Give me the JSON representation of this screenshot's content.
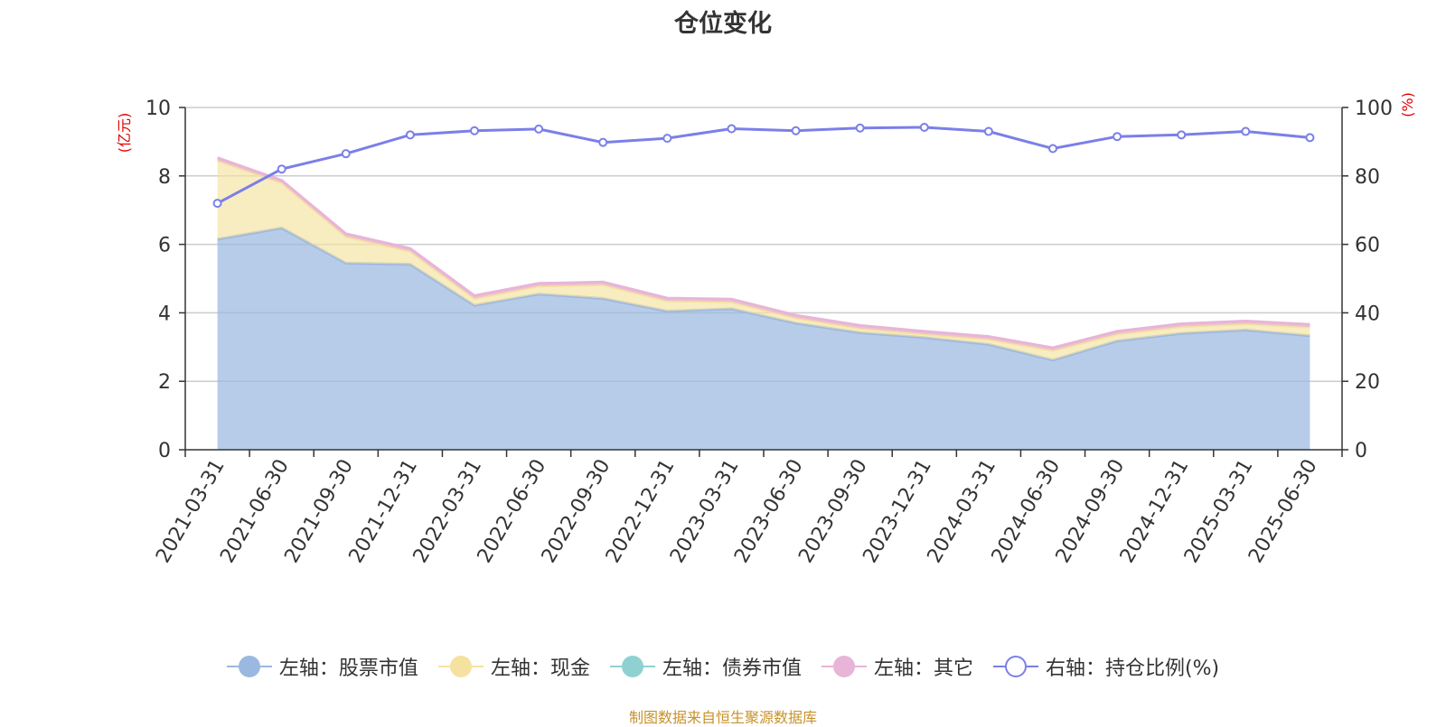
{
  "title": "仓位变化",
  "source": "制图数据来自恒生聚源数据库",
  "chart_data": {
    "type": "area",
    "title": "仓位变化",
    "ylabel_left": "(亿元)",
    "ylabel_right": "(%)",
    "ylim_left": [
      0,
      10
    ],
    "ylim_right": [
      0,
      100
    ],
    "yticks_left": [
      0,
      2,
      4,
      6,
      8,
      10
    ],
    "yticks_right": [
      0,
      20,
      40,
      60,
      80,
      100
    ],
    "grid": true,
    "legend_position": "bottom",
    "categories": [
      "2021-03-31",
      "2021-06-30",
      "2021-09-30",
      "2021-12-31",
      "2022-03-31",
      "2022-06-30",
      "2022-09-30",
      "2022-12-31",
      "2023-03-31",
      "2023-06-30",
      "2023-09-30",
      "2023-12-31",
      "2024-03-31",
      "2024-06-30",
      "2024-09-30",
      "2024-12-31",
      "2025-03-31",
      "2025-06-30"
    ],
    "series": [
      {
        "name": "左轴：股票市值",
        "axis": "left",
        "stack": true,
        "color": "#9bb8e0",
        "values": [
          6.15,
          6.48,
          5.45,
          5.42,
          4.22,
          4.55,
          4.42,
          4.05,
          4.12,
          3.7,
          3.42,
          3.28,
          3.08,
          2.62,
          3.18,
          3.4,
          3.5,
          3.33
        ]
      },
      {
        "name": "左轴：现金",
        "axis": "left",
        "stack": true,
        "color": "#f5e2a0",
        "values": [
          2.3,
          1.32,
          0.78,
          0.38,
          0.2,
          0.23,
          0.4,
          0.3,
          0.2,
          0.15,
          0.13,
          0.1,
          0.15,
          0.28,
          0.2,
          0.2,
          0.18,
          0.25
        ]
      },
      {
        "name": "左轴：债券市值",
        "axis": "left",
        "stack": true,
        "color": "#8fd1d1",
        "values": [
          0,
          0,
          0,
          0,
          0,
          0,
          0,
          0,
          0,
          0,
          0,
          0,
          0,
          0,
          0,
          0,
          0,
          0
        ]
      },
      {
        "name": "左轴：其它",
        "axis": "left",
        "stack": true,
        "color": "#e8b4d8",
        "values": [
          0.08,
          0.07,
          0.08,
          0.08,
          0.08,
          0.08,
          0.08,
          0.08,
          0.08,
          0.08,
          0.08,
          0.08,
          0.08,
          0.08,
          0.08,
          0.08,
          0.08,
          0.08
        ]
      },
      {
        "name": "右轴：持仓比例(%)",
        "axis": "right",
        "stack": false,
        "color": "#7b7fe8",
        "values": [
          72,
          82,
          86.5,
          92,
          93.2,
          93.7,
          89.8,
          91,
          93.8,
          93.2,
          94,
          94.2,
          93,
          88,
          91.5,
          92,
          93,
          91.2
        ]
      }
    ]
  }
}
